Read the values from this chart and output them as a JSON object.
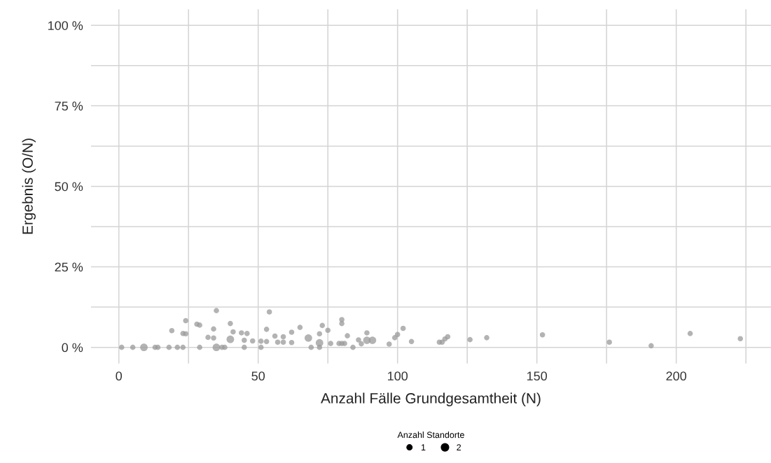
{
  "chart_data": {
    "type": "bubble",
    "xlabel": "Anzahl Fälle Grundgesamtheit (N)",
    "ylabel": "Ergebnis (O/N)",
    "legend_title": "Anzahl Standorte",
    "grid": true,
    "marker": "circle",
    "xlim": [
      -10,
      234
    ],
    "xticks": [
      0,
      {
        "value": 25,
        "label": null
      },
      50,
      {
        "value": 75,
        "label": null
      },
      100,
      {
        "value": 125,
        "label": null
      },
      150,
      {
        "value": 175,
        "label": null
      },
      200,
      {
        "value": 225,
        "label": null
      }
    ],
    "ylim": [
      -5,
      105
    ],
    "yticks": [
      {
        "value": 0,
        "label": "0 %"
      },
      {
        "value": 12.5,
        "label": null
      },
      {
        "value": 25,
        "label": "25 %"
      },
      {
        "value": 37.5,
        "label": null
      },
      {
        "value": 50,
        "label": "50 %"
      },
      {
        "value": 62.5,
        "label": null
      },
      {
        "value": 75,
        "label": "75 %"
      },
      {
        "value": 87.5,
        "label": null
      },
      {
        "value": 100,
        "label": "100 %"
      }
    ],
    "size_legend": [
      1,
      2
    ],
    "series": [
      {
        "color": "#999999",
        "x": [
          1,
          5,
          9,
          13,
          14,
          18,
          21,
          23,
          19,
          24,
          23,
          24,
          28,
          29,
          29,
          32,
          34,
          34,
          35,
          35,
          37,
          38,
          40,
          40,
          41,
          44,
          45,
          45,
          46,
          48,
          51,
          51,
          53,
          53,
          54,
          56,
          57,
          59,
          59,
          62,
          62,
          65,
          68,
          69,
          72,
          72,
          72,
          73,
          75,
          76,
          79,
          80,
          81,
          80,
          80,
          82,
          84,
          86,
          87,
          89,
          89,
          91,
          97,
          99,
          100,
          102,
          105,
          115,
          116,
          117,
          118,
          126,
          132,
          152,
          176,
          191,
          205,
          223
        ],
        "values": [
          0,
          0,
          0,
          0,
          0,
          0,
          0,
          0,
          5.2,
          8.3,
          4.3,
          4.2,
          7.2,
          6.9,
          0,
          3.1,
          5.7,
          2.9,
          11.4,
          0,
          0,
          0,
          7.4,
          2.5,
          4.8,
          4.5,
          2.2,
          0,
          4.3,
          2.0,
          1.9,
          0,
          5.6,
          1.8,
          11.0,
          3.5,
          1.6,
          3.3,
          1.6,
          4.7,
          1.5,
          6.2,
          2.9,
          0,
          1.4,
          4.2,
          0,
          6.8,
          5.3,
          1.2,
          1.2,
          1.2,
          1.2,
          8.6,
          7.4,
          3.6,
          0,
          2.3,
          1.1,
          4.5,
          2.2,
          2.2,
          1.0,
          3.0,
          4.0,
          5.9,
          1.8,
          1.6,
          1.6,
          2.6,
          3.3,
          2.4,
          3.0,
          3.9,
          1.6,
          0.5,
          4.3,
          2.7
        ],
        "sizes": [
          1,
          1,
          2,
          1,
          1,
          1,
          1,
          1,
          1,
          1,
          1,
          1,
          1,
          1,
          1,
          1,
          1,
          1,
          1,
          2,
          1,
          1,
          1,
          2,
          1,
          1,
          1,
          1,
          1,
          1,
          1,
          1,
          1,
          1,
          1,
          1,
          1,
          1,
          1,
          1,
          1,
          1,
          2,
          1,
          2,
          1,
          1,
          1,
          1,
          1,
          1,
          1,
          1,
          1,
          1,
          1,
          1,
          1,
          1,
          1,
          2,
          2,
          1,
          1,
          1,
          1,
          1,
          1,
          1,
          1,
          1,
          1,
          1,
          1,
          1,
          1,
          1,
          1
        ]
      }
    ]
  }
}
